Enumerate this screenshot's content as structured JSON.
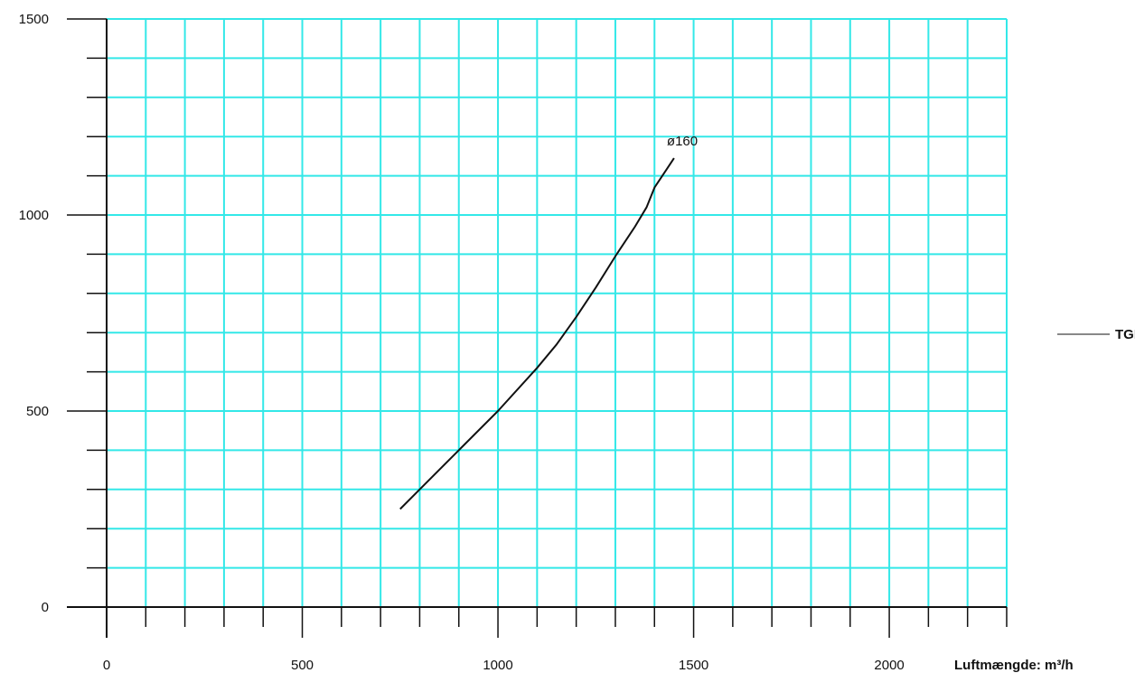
{
  "chart_data": {
    "type": "line",
    "title": "",
    "xlabel": "Luftmængde: m³/h",
    "ylabel": "",
    "xlim": [
      0,
      2300
    ],
    "ylim": [
      0,
      1500
    ],
    "x_ticks": [
      0,
      500,
      1000,
      1500,
      2000
    ],
    "y_ticks": [
      0,
      500,
      1000,
      1500
    ],
    "x_minor_step": 100,
    "y_minor_step": 100,
    "grid": true,
    "grid_color": "#33e8e8",
    "axis_color": "#111111",
    "line_color": "#111111",
    "legend": {
      "label": "TGI",
      "position": "right"
    },
    "series": [
      {
        "name": "ø160",
        "x": [
          750,
          800,
          900,
          1000,
          1100,
          1150,
          1200,
          1250,
          1300,
          1350,
          1380,
          1400,
          1430,
          1450
        ],
        "y": [
          250,
          300,
          400,
          500,
          610,
          670,
          740,
          815,
          895,
          970,
          1020,
          1070,
          1115,
          1145
        ]
      }
    ]
  }
}
